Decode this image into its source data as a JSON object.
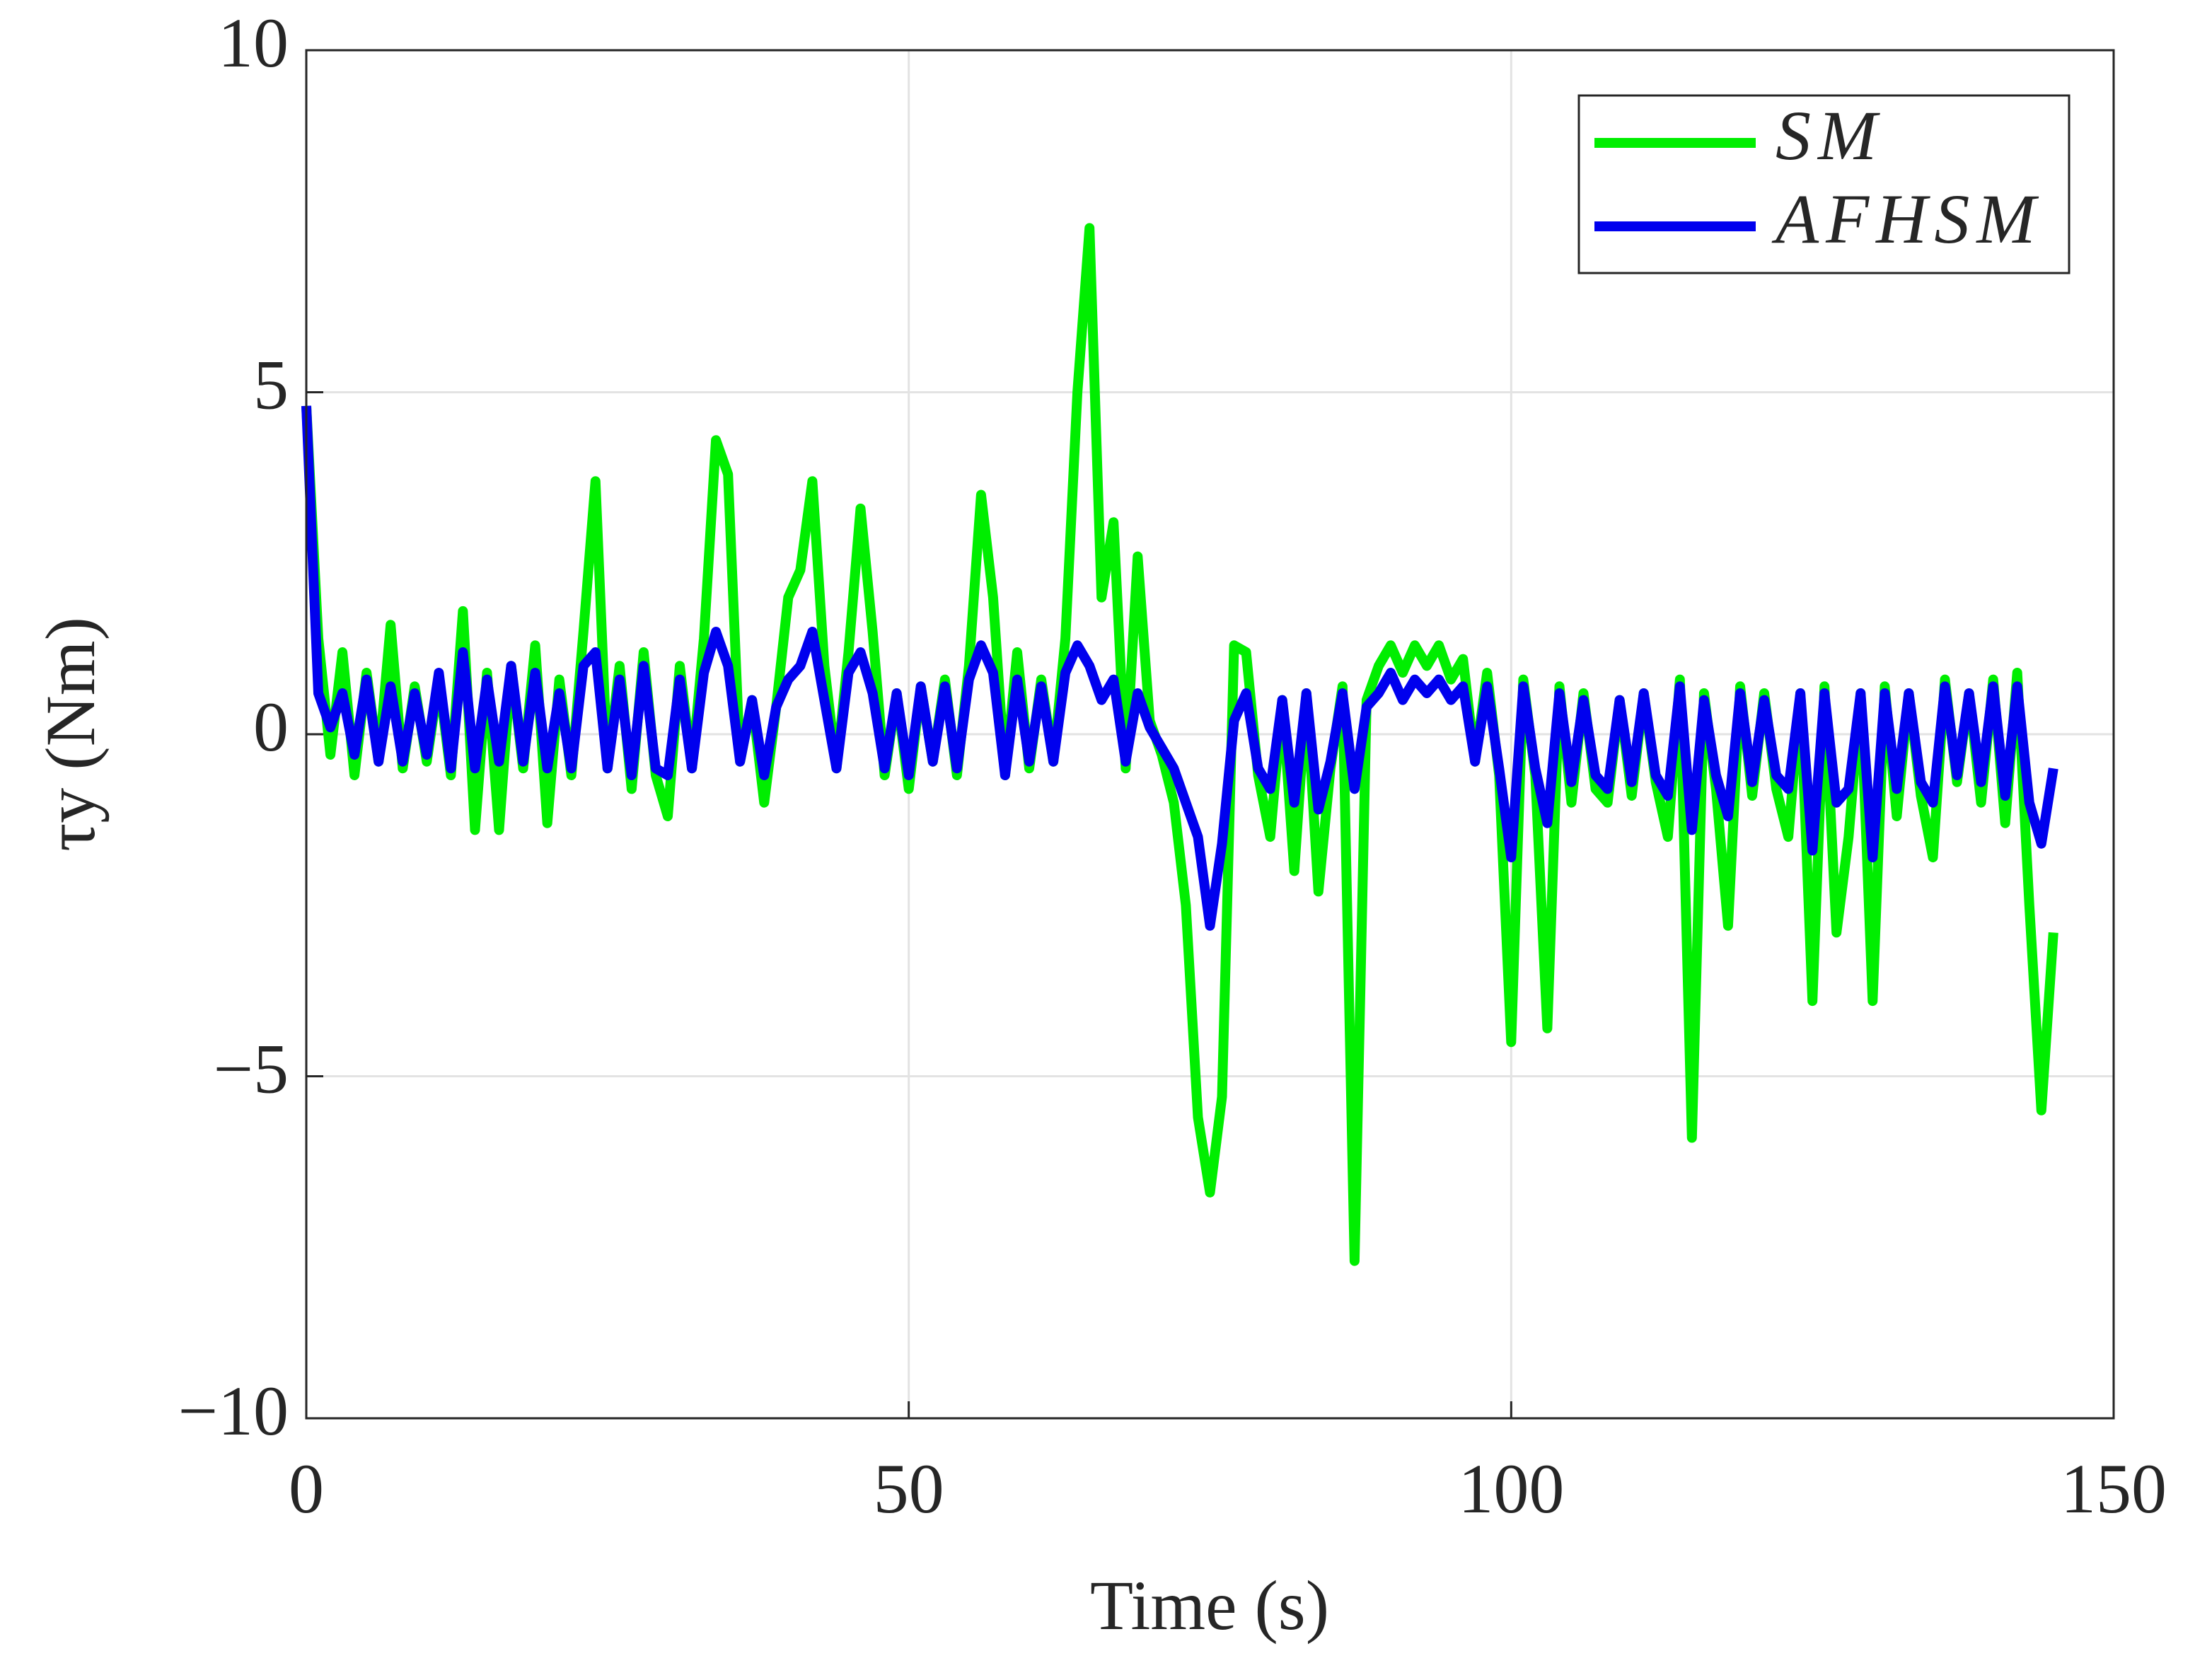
{
  "chart_data": {
    "type": "line",
    "xlabel": "Time (s)",
    "ylabel": "τy (Nm)",
    "x": [
      0,
      1,
      2,
      3,
      4,
      5,
      6,
      7,
      8,
      9,
      10,
      11,
      12,
      13,
      14,
      15,
      16,
      17,
      18,
      19,
      20,
      21,
      22,
      23,
      24,
      25,
      26,
      27,
      28,
      29,
      30,
      31,
      32,
      33,
      34,
      35,
      36,
      37,
      38,
      39,
      40,
      41,
      42,
      43,
      44,
      45,
      46,
      47,
      48,
      49,
      50,
      51,
      52,
      53,
      54,
      55,
      56,
      57,
      58,
      59,
      60,
      61,
      62,
      63,
      64,
      65,
      66,
      67,
      68,
      69,
      70,
      71,
      72,
      73,
      74,
      75,
      76,
      77,
      78,
      79,
      80,
      81,
      82,
      83,
      84,
      85,
      86,
      87,
      88,
      89,
      90,
      91,
      92,
      93,
      94,
      95,
      96,
      97,
      98,
      99,
      100,
      101,
      102,
      103,
      104,
      105,
      106,
      107,
      108,
      109,
      110,
      111,
      112,
      113,
      114,
      115,
      116,
      117,
      118,
      119,
      120,
      121,
      122,
      123,
      124,
      125,
      126,
      127,
      128,
      129,
      130,
      131,
      132,
      133,
      134,
      135,
      136,
      137,
      138,
      139,
      140,
      141,
      142,
      143,
      144,
      145
    ],
    "series": [
      {
        "name": "SM",
        "color": "#00ee00",
        "values": [
          4.8,
          1.4,
          -0.3,
          1.2,
          -0.6,
          0.9,
          -0.4,
          1.6,
          -0.5,
          0.7,
          -0.4,
          0.8,
          -0.6,
          1.8,
          -1.4,
          0.9,
          -1.4,
          1.0,
          -0.5,
          1.3,
          -1.3,
          0.8,
          -0.6,
          1.5,
          3.7,
          -0.5,
          1.0,
          -0.8,
          1.2,
          -0.6,
          -1.2,
          1.0,
          -0.5,
          1.4,
          4.3,
          3.8,
          -0.4,
          0.5,
          -1.0,
          0.4,
          2.0,
          2.4,
          3.7,
          1.0,
          -0.5,
          1.2,
          3.3,
          1.5,
          -0.6,
          0.6,
          -0.8,
          0.7,
          -0.4,
          0.8,
          -0.6,
          1.0,
          3.5,
          2.0,
          -0.6,
          1.2,
          -0.5,
          0.8,
          -0.4,
          1.4,
          5.0,
          7.4,
          2.0,
          3.1,
          -0.5,
          2.6,
          0.2,
          -0.3,
          -1.0,
          -2.5,
          -5.6,
          -6.7,
          -5.3,
          1.3,
          1.2,
          -0.6,
          -1.5,
          0.5,
          -2.0,
          0.6,
          -2.3,
          -0.5,
          0.7,
          -7.7,
          0.5,
          1.0,
          1.3,
          0.9,
          1.3,
          1.0,
          1.3,
          0.8,
          1.1,
          -0.4,
          0.9,
          -0.6,
          -4.5,
          0.8,
          -0.6,
          -4.3,
          0.7,
          -1.0,
          0.6,
          -0.8,
          -1.0,
          0.5,
          -0.9,
          0.6,
          -0.7,
          -1.5,
          0.8,
          -5.9,
          0.6,
          -0.8,
          -2.8,
          0.7,
          -0.9,
          0.6,
          -0.8,
          -1.5,
          0.6,
          -3.9,
          0.7,
          -2.9,
          -1.5,
          0.6,
          -3.9,
          0.7,
          -1.2,
          0.6,
          -0.9,
          -1.8,
          0.8,
          -0.7,
          0.6,
          -1.0,
          0.8,
          -1.3,
          0.9,
          -2.5,
          -5.5,
          -2.9
        ]
      },
      {
        "name": "AFHSM",
        "color": "#0000ee",
        "values": [
          4.8,
          0.6,
          0.1,
          0.6,
          -0.3,
          0.8,
          -0.4,
          0.7,
          -0.4,
          0.6,
          -0.3,
          0.9,
          -0.5,
          1.2,
          -0.5,
          0.8,
          -0.4,
          1.0,
          -0.4,
          0.9,
          -0.5,
          0.6,
          -0.5,
          1.0,
          1.2,
          -0.5,
          0.8,
          -0.6,
          1.0,
          -0.5,
          -0.6,
          0.8,
          -0.5,
          0.9,
          1.5,
          1.0,
          -0.4,
          0.5,
          -0.6,
          0.4,
          0.8,
          1.0,
          1.5,
          0.5,
          -0.5,
          0.9,
          1.2,
          0.6,
          -0.5,
          0.6,
          -0.6,
          0.7,
          -0.4,
          0.7,
          -0.5,
          0.8,
          1.3,
          0.9,
          -0.6,
          0.8,
          -0.4,
          0.7,
          -0.4,
          0.9,
          1.3,
          1.0,
          0.5,
          0.8,
          -0.4,
          0.6,
          0.1,
          -0.2,
          -0.5,
          -1.0,
          -1.5,
          -2.8,
          -1.6,
          0.2,
          0.6,
          -0.5,
          -0.8,
          0.5,
          -1.0,
          0.6,
          -1.1,
          -0.4,
          0.6,
          -0.8,
          0.4,
          0.6,
          0.9,
          0.5,
          0.8,
          0.6,
          0.8,
          0.5,
          0.7,
          -0.4,
          0.7,
          -0.5,
          -1.8,
          0.7,
          -0.5,
          -1.3,
          0.6,
          -0.7,
          0.5,
          -0.6,
          -0.8,
          0.5,
          -0.7,
          0.6,
          -0.6,
          -0.9,
          0.7,
          -1.4,
          0.5,
          -0.6,
          -1.2,
          0.6,
          -0.7,
          0.5,
          -0.6,
          -0.8,
          0.6,
          -1.7,
          0.6,
          -1.0,
          -0.8,
          0.6,
          -1.8,
          0.6,
          -0.8,
          0.6,
          -0.7,
          -1.0,
          0.7,
          -0.6,
          0.6,
          -0.7,
          0.7,
          -0.9,
          0.7,
          -1.0,
          -1.6,
          -0.5
        ]
      }
    ],
    "xlim": [
      0,
      150
    ],
    "xticks": [
      0,
      50,
      100,
      150
    ],
    "ylim": [
      -10,
      10
    ],
    "yticks": [
      {
        "value": -10,
        "label": "−10"
      },
      {
        "value": -5,
        "label": "−5"
      },
      0,
      5,
      10
    ],
    "grid": true,
    "legend": "upper right"
  }
}
